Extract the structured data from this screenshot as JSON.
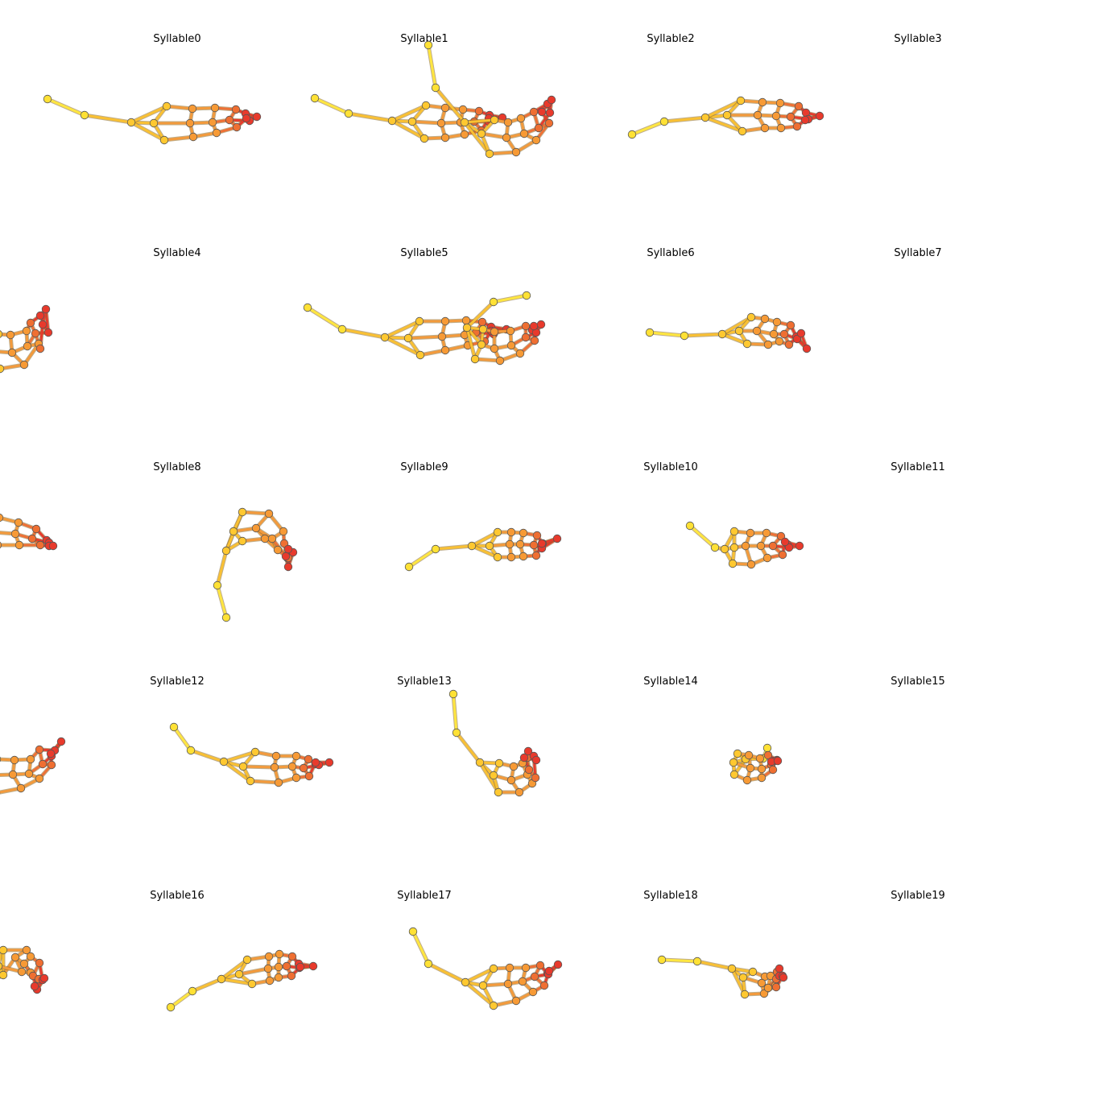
{
  "figure": {
    "panels": [
      {
        "title": "Syllable0"
      },
      {
        "title": "Syllable1"
      },
      {
        "title": "Syllable2"
      },
      {
        "title": "Syllable3"
      },
      {
        "title": "Syllable4"
      },
      {
        "title": "Syllable5"
      },
      {
        "title": "Syllable6"
      },
      {
        "title": "Syllable7"
      },
      {
        "title": "Syllable8"
      },
      {
        "title": "Syllable9"
      },
      {
        "title": "Syllable10"
      },
      {
        "title": "Syllable11"
      },
      {
        "title": "Syllable12"
      },
      {
        "title": "Syllable13"
      },
      {
        "title": "Syllable14"
      },
      {
        "title": "Syllable15"
      },
      {
        "title": "Syllable16"
      },
      {
        "title": "Syllable17"
      },
      {
        "title": "Syllable18"
      },
      {
        "title": "Syllable19"
      }
    ],
    "colors": {
      "tail": "#ffe135",
      "body_front": "#ffc830",
      "body_mid": "#f79a35",
      "body_rear": "#ef6f32",
      "head": "#e83a2c",
      "outline": "#555555"
    }
  }
}
